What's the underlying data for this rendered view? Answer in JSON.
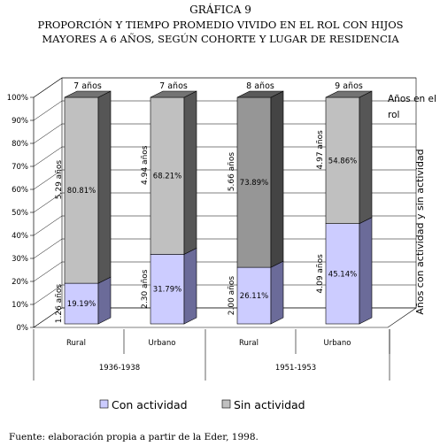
{
  "figure": {
    "label": "GRÁFICA 9",
    "title_line1": "PROPORCIÓN Y TIEMPO PROMEDIO VIVIDO EN EL ROL CON HIJOS",
    "title_line2": "MAYORES A 6 AÑOS, SEGÚN COHORTE Y LUGAR DE RESIDENCIA",
    "source": "Fuente: elaboración propia a partir de la Eder, 1998."
  },
  "chart_data": {
    "type": "bar",
    "stacked": true,
    "three_d": true,
    "categories": [
      "Rural",
      "Urbano",
      "Rural",
      "Urbano"
    ],
    "cohorts": [
      {
        "label": "1936-1938",
        "categories": [
          "Rural",
          "Urbano"
        ]
      },
      {
        "label": "1951-1953",
        "categories": [
          "Rural",
          "Urbano"
        ]
      }
    ],
    "series": [
      {
        "name": "Con actividad",
        "values": [
          19.19,
          31.79,
          26.11,
          45.14
        ],
        "value_labels": [
          "19.19%",
          "31.79%",
          "26.11%",
          "45.14%"
        ],
        "years_labels": [
          "1.26 años",
          "2.30 años",
          "2.00 años",
          "4.09 años"
        ],
        "color": "#ccccff"
      },
      {
        "name": "Sin actividad",
        "values": [
          80.81,
          68.21,
          73.89,
          54.86
        ],
        "value_labels": [
          "80.81%",
          "68.21%",
          "73.89%",
          "54.86%"
        ],
        "years_labels": [
          "5.29 años",
          "4.94 años",
          "5.66 años",
          "4.97 años"
        ],
        "color": "#c0c0c0"
      }
    ],
    "sin_actividad_highlight_color": "#969696",
    "total_years_labels": [
      "7 años",
      "7 años",
      "8 años",
      "9 años"
    ],
    "ylim": [
      0,
      100
    ],
    "yticks": [
      "0%",
      "10%",
      "20%",
      "30%",
      "40%",
      "50%",
      "60%",
      "70%",
      "80%",
      "90%",
      "100%"
    ],
    "ylabel": "Años con actividad y sin actividad",
    "side_annotation_line1": "Años en el",
    "side_annotation_line2": "rol",
    "legend": [
      "Con actividad",
      "Sin actividad"
    ],
    "legend_position": "bottom",
    "grid": true
  }
}
